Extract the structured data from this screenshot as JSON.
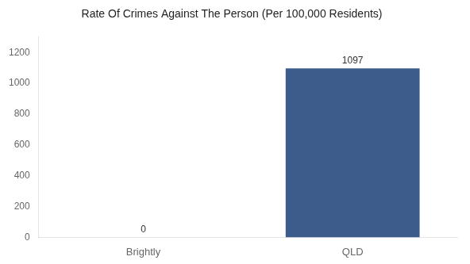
{
  "chart_data": {
    "type": "bar",
    "title": "Rate Of Crimes Against The Person (Per 100,000 Residents)",
    "categories": [
      "Brightly",
      "QLD"
    ],
    "values": [
      0,
      1097
    ],
    "color": "#3d5c8c",
    "ylim": [
      0,
      1300
    ],
    "yticks": [
      0,
      200,
      400,
      600,
      800,
      1000,
      1200
    ],
    "grid": false,
    "data_labels": true
  }
}
